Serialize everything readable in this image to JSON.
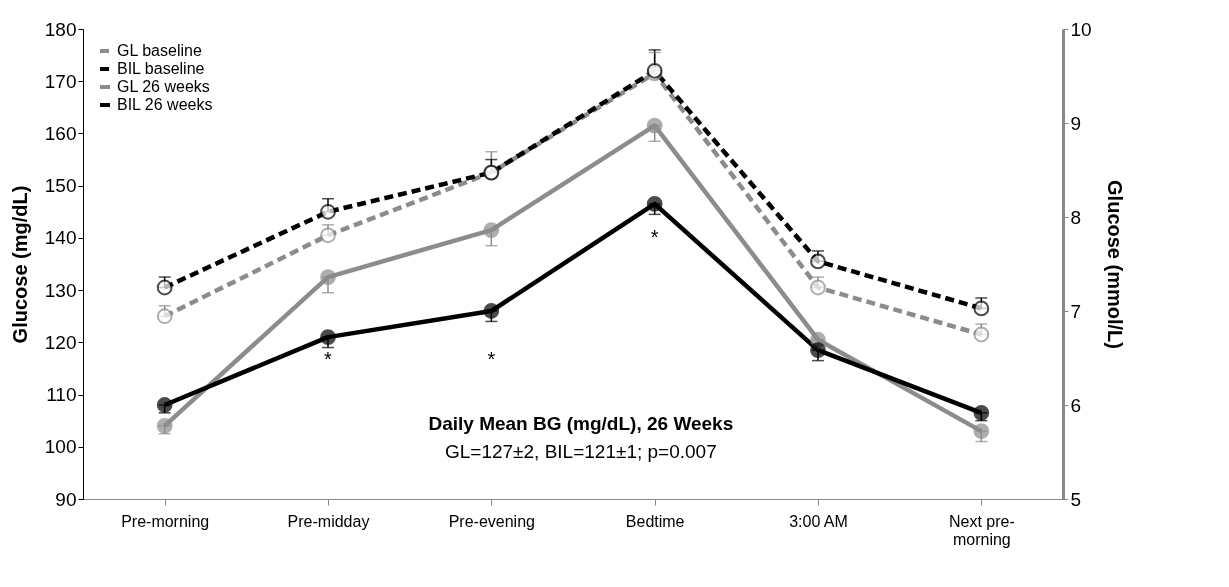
{
  "chart_data": {
    "type": "line",
    "xlabel": null,
    "ylabel": "Glucose (mg/dL)",
    "y2label": "Glucose (mmol/L)",
    "categories": [
      "Pre-morning",
      "Pre-midday",
      "Pre-evening",
      "Bedtime",
      "3:00 AM",
      "Next pre-morning"
    ],
    "ylim": [
      90,
      180
    ],
    "yticks": [
      90,
      100,
      110,
      120,
      130,
      140,
      150,
      160,
      170,
      180
    ],
    "y2lim": [
      5,
      10
    ],
    "y2ticks": [
      5,
      6,
      7,
      8,
      9,
      10
    ],
    "series": [
      {
        "name": "GL baseline",
        "color": "#8c8c8c",
        "line_style": "dashed",
        "values": [
          125,
          140.5,
          152.5,
          171.5,
          130.5,
          121.5
        ],
        "errors": [
          [
            125,
            127
          ],
          [
            140.5,
            142.5
          ],
          [
            152.5,
            156.5
          ],
          [
            171.5,
            175.5
          ],
          [
            130.5,
            132.5
          ],
          [
            121.5,
            123.5
          ]
        ]
      },
      {
        "name": "BIL baseline",
        "color": "#000000",
        "line_style": "dashed",
        "values": [
          130.5,
          145,
          152.5,
          172,
          135.5,
          126.5
        ],
        "errors": [
          [
            130.5,
            132.5
          ],
          [
            145,
            147.5
          ],
          [
            152.5,
            155
          ],
          [
            172,
            176
          ],
          [
            135.5,
            137.5
          ],
          [
            126.5,
            128.5
          ]
        ]
      },
      {
        "name": "GL 26 weeks",
        "color": "#8c8c8c",
        "line_style": "solid",
        "values": [
          104,
          132.5,
          141.5,
          161.5,
          120.5,
          103
        ],
        "errors": [
          [
            102.5,
            104
          ],
          [
            129.5,
            132.5
          ],
          [
            138.5,
            141.5
          ],
          [
            158.5,
            161.5
          ],
          [
            118.5,
            120.5
          ],
          [
            101,
            103
          ]
        ]
      },
      {
        "name": "BIL 26 weeks",
        "color": "#000000",
        "line_style": "solid",
        "values": [
          108,
          121,
          126,
          146.5,
          118.5,
          106.5
        ],
        "errors": [
          [
            106.5,
            108
          ],
          [
            119,
            121
          ],
          [
            124,
            126
          ],
          [
            144.5,
            146.5
          ],
          [
            116.5,
            118.5
          ],
          [
            105,
            106.5
          ]
        ]
      }
    ],
    "marker": "circle",
    "grid": false,
    "legend": "top left",
    "annotations": [
      "*",
      "*",
      "*",
      "Daily Mean BG (mg/dL), 26 Weeks",
      "GL=127±2, BIL=121±1; p=0.007"
    ]
  }
}
